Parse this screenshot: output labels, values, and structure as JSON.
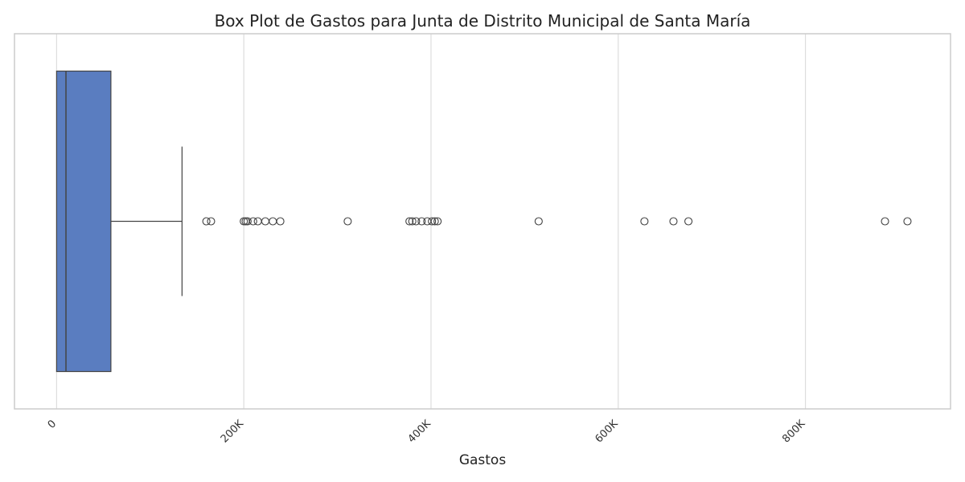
{
  "chart_data": {
    "type": "box",
    "orientation": "horizontal",
    "title": "Box Plot de Gastos para Junta de Distrito Municipal de Santa María",
    "xlabel": "Gastos",
    "ylabel": "",
    "xlim": [
      -45000,
      955000
    ],
    "xticks": [
      0,
      200000,
      400000,
      600000,
      800000
    ],
    "xtick_labels": [
      "0",
      "200K",
      "400K",
      "600K",
      "800K"
    ],
    "grid": true,
    "box": {
      "min": 0,
      "q1": 0,
      "median": 10000,
      "q3": 58000,
      "whisker_low": 0,
      "whisker_high": 134000,
      "color": "#5a7dc0"
    },
    "outliers": [
      160000,
      165000,
      200000,
      202000,
      204000,
      210000,
      215000,
      223000,
      231000,
      239000,
      311000,
      377000,
      380000,
      384000,
      390000,
      396000,
      401000,
      404000,
      407000,
      515000,
      628000,
      659000,
      675000,
      885000,
      909000
    ]
  }
}
